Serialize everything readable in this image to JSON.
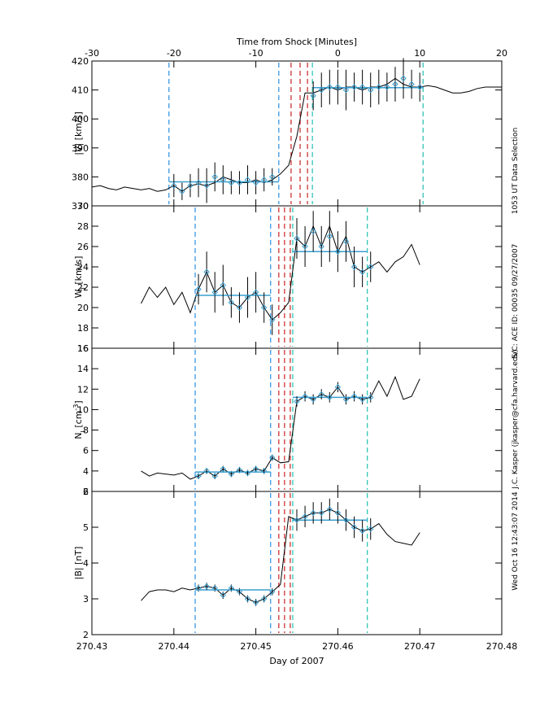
{
  "shared_x": {
    "label": "Day of 2007",
    "xlim": [
      270.43,
      270.48
    ],
    "xticks": [
      270.43,
      270.44,
      270.45,
      270.46,
      270.47,
      270.48
    ]
  },
  "top_axis": {
    "label": "Time from Shock [Minutes]",
    "xlim": [
      -30,
      20
    ],
    "xticks": [
      -30,
      -20,
      -10,
      0,
      10,
      20
    ]
  },
  "side_text": [
    "1053 UT Data Selection",
    "S/C: ACE ID: 00035 09/27/2007",
    "J.C. Kasper (jkasper@cfa.harvard.edu)",
    "Wed Oct 16 12:43:07 2014"
  ],
  "chart_data": [
    {
      "type": "line",
      "ylabel": [
        {
          "text": "|V| [km/s]"
        }
      ],
      "ylim": [
        370,
        420
      ],
      "yticks": [
        370,
        380,
        390,
        400,
        410,
        420
      ],
      "color": "#000000",
      "x": [
        270.43,
        270.431,
        270.432,
        270.433,
        270.434,
        270.435,
        270.436,
        270.437,
        270.438,
        270.439,
        270.44,
        270.441,
        270.442,
        270.443,
        270.444,
        270.445,
        270.446,
        270.447,
        270.448,
        270.449,
        270.45,
        270.451,
        270.452,
        270.453,
        270.454,
        270.455,
        270.456,
        270.457,
        270.458,
        270.459,
        270.46,
        270.461,
        270.462,
        270.463,
        270.464,
        270.465,
        270.466,
        270.467,
        270.468,
        270.469,
        270.47,
        270.471,
        270.472,
        270.473,
        270.474,
        270.475,
        270.476,
        270.477,
        270.478,
        270.479,
        270.48
      ],
      "values": [
        376.5,
        377,
        376,
        375.5,
        376.5,
        376,
        375.5,
        376,
        375,
        375.5,
        377,
        375,
        377,
        377.5,
        377,
        378,
        380,
        379,
        378,
        378,
        379,
        378,
        379,
        381,
        384,
        394,
        409,
        409,
        410,
        411,
        410,
        411,
        411,
        410,
        411,
        411,
        412,
        414,
        412,
        411,
        411,
        411.5,
        411,
        410,
        409,
        409,
        409.5,
        410.5,
        411,
        411,
        411
      ],
      "avg_color": "#3a9fd0",
      "avg_x": [
        270.44,
        270.441,
        270.442,
        270.443,
        270.444,
        270.445,
        270.446,
        270.447,
        270.448,
        270.449,
        270.45,
        270.451,
        270.452,
        270.457,
        270.458,
        270.459,
        270.46,
        270.461,
        270.462,
        270.463,
        270.464,
        270.465,
        270.466,
        270.467,
        270.468,
        270.469,
        270.47
      ],
      "avg_values": [
        377,
        375,
        377,
        378,
        377,
        380,
        379,
        378,
        378,
        379,
        378,
        379,
        380,
        408,
        410,
        411,
        411,
        410,
        411,
        411,
        410,
        411,
        411,
        412,
        414,
        412,
        411
      ],
      "avg_errors": [
        4,
        3,
        4,
        5,
        6,
        5,
        5,
        4,
        4,
        5,
        4,
        4,
        3,
        5,
        6,
        6,
        6,
        7,
        5,
        6,
        6,
        6,
        5,
        6,
        7,
        5,
        5
      ],
      "mean_lines": [
        {
          "x": [
            270.4394,
            270.4528
          ],
          "value": 378.3
        },
        {
          "x": [
            270.4569,
            270.4704
          ],
          "value": 410.8
        }
      ],
      "vlines": [
        {
          "x": 270.4394,
          "color": "#2a8fe0"
        },
        {
          "x": 270.4528,
          "color": "#2a8fe0"
        },
        {
          "x": 270.4543,
          "color": "#c82020"
        },
        {
          "x": 270.4554,
          "color": "#c82020"
        },
        {
          "x": 270.4563,
          "color": "#c82020"
        },
        {
          "x": 270.4569,
          "color": "#20c0b0"
        },
        {
          "x": 270.4704,
          "color": "#20c0b0"
        }
      ]
    },
    {
      "type": "line",
      "ylabel": [
        {
          "text": "W"
        },
        {
          "text": "I",
          "shift": "sub"
        },
        {
          "text": " [km/s]"
        }
      ],
      "ylim": [
        16,
        30
      ],
      "yticks": [
        16,
        18,
        20,
        22,
        24,
        26,
        28,
        30
      ],
      "color": "#000000",
      "x": [
        270.436,
        270.437,
        270.438,
        270.439,
        270.44,
        270.441,
        270.442,
        270.443,
        270.444,
        270.445,
        270.446,
        270.447,
        270.448,
        270.449,
        270.45,
        270.451,
        270.452,
        270.453,
        270.454,
        270.455,
        270.456,
        270.457,
        270.458,
        270.459,
        270.46,
        270.461,
        270.462,
        270.463,
        270.464,
        270.465,
        270.466,
        270.467,
        270.468,
        270.469,
        270.47
      ],
      "values": [
        20.4,
        22,
        21,
        22,
        20.3,
        21.5,
        19.5,
        21.8,
        23.5,
        21.5,
        22.2,
        20.5,
        20,
        21,
        21.5,
        20,
        18.8,
        19.5,
        20.5,
        26.8,
        26,
        28,
        26,
        28,
        25.5,
        27,
        24,
        23.5,
        24,
        24.5,
        23.5,
        24.5,
        25,
        26.2,
        24.2
      ],
      "avg_color": "#3a9fd0",
      "avg_x": [
        270.443,
        270.444,
        270.445,
        270.446,
        270.447,
        270.448,
        270.449,
        270.45,
        270.451,
        270.452,
        270.455,
        270.456,
        270.457,
        270.458,
        270.459,
        270.46,
        270.461,
        270.462,
        270.463,
        270.464
      ],
      "avg_values": [
        21.8,
        23.5,
        21.5,
        22.2,
        20.5,
        20,
        21,
        21.5,
        20,
        18.8,
        26.8,
        26,
        27.5,
        26,
        27,
        25.5,
        26.5,
        24,
        23.5,
        24
      ],
      "avg_errors": [
        1.5,
        2,
        2,
        2,
        1.5,
        1.5,
        2,
        2,
        1.5,
        1.5,
        2,
        2,
        2,
        2,
        2.5,
        2,
        2,
        2,
        1.5,
        1.5
      ],
      "mean_lines": [
        {
          "x": [
            270.4426,
            270.4518
          ],
          "value": 21.2
        },
        {
          "x": [
            270.4545,
            270.4636
          ],
          "value": 25.5
        }
      ],
      "vlines": [
        {
          "x": 270.4426,
          "color": "#2a8fe0"
        },
        {
          "x": 270.4518,
          "color": "#2a8fe0"
        },
        {
          "x": 270.4528,
          "color": "#c82020"
        },
        {
          "x": 270.4535,
          "color": "#c82020"
        },
        {
          "x": 270.4542,
          "color": "#c82020"
        },
        {
          "x": 270.4545,
          "color": "#20c0b0"
        },
        {
          "x": 270.4636,
          "color": "#20c0b0"
        }
      ]
    },
    {
      "type": "line",
      "ylabel": [
        {
          "text": "N"
        },
        {
          "text": "I",
          "shift": "sub"
        },
        {
          "text": " [cm"
        },
        {
          "text": "-3",
          "shift": "super"
        },
        {
          "text": "]"
        }
      ],
      "ylim": [
        2,
        16
      ],
      "yticks": [
        2,
        4,
        6,
        8,
        10,
        12,
        14,
        16
      ],
      "color": "#000000",
      "x": [
        270.436,
        270.437,
        270.438,
        270.439,
        270.44,
        270.441,
        270.442,
        270.443,
        270.444,
        270.445,
        270.446,
        270.447,
        270.448,
        270.449,
        270.45,
        270.451,
        270.452,
        270.453,
        270.454,
        270.455,
        270.456,
        270.457,
        270.458,
        270.459,
        270.46,
        270.461,
        270.462,
        270.463,
        270.464,
        270.465,
        270.466,
        270.467,
        270.468,
        270.469,
        270.47
      ],
      "values": [
        4.0,
        3.5,
        3.8,
        3.7,
        3.6,
        3.8,
        3.2,
        3.5,
        4.0,
        3.5,
        4.2,
        3.7,
        4.1,
        3.8,
        4.2,
        4.0,
        5.3,
        4.8,
        4.9,
        10.8,
        11.3,
        11.0,
        11.5,
        11.2,
        12.2,
        11.0,
        11.3,
        11.0,
        11.2,
        12.8,
        11.3,
        13.2,
        11.0,
        11.3,
        13.0
      ],
      "avg_color": "#3a9fd0",
      "avg_x": [
        270.443,
        270.444,
        270.445,
        270.446,
        270.447,
        270.448,
        270.449,
        270.45,
        270.451,
        270.452,
        270.455,
        270.456,
        270.457,
        270.458,
        270.459,
        270.46,
        270.461,
        270.462,
        270.463,
        270.464
      ],
      "avg_values": [
        3.5,
        4.0,
        3.5,
        4.2,
        3.7,
        4.1,
        3.8,
        4.2,
        4.0,
        5.3,
        10.8,
        11.3,
        11.0,
        11.5,
        11.2,
        12.2,
        11.0,
        11.3,
        11.0,
        11.2
      ],
      "avg_errors": [
        0.3,
        0.3,
        0.3,
        0.3,
        0.3,
        0.3,
        0.3,
        0.3,
        0.3,
        0.3,
        0.5,
        0.5,
        0.5,
        0.5,
        0.5,
        0.5,
        0.5,
        0.5,
        0.5,
        0.5
      ],
      "mean_lines": [
        {
          "x": [
            270.4426,
            270.4518
          ],
          "value": 3.9
        },
        {
          "x": [
            270.4545,
            270.4636
          ],
          "value": 11.2
        }
      ],
      "vlines": [
        {
          "x": 270.4426,
          "color": "#2a8fe0"
        },
        {
          "x": 270.4518,
          "color": "#2a8fe0"
        },
        {
          "x": 270.4528,
          "color": "#c82020"
        },
        {
          "x": 270.4535,
          "color": "#c82020"
        },
        {
          "x": 270.4542,
          "color": "#c82020"
        },
        {
          "x": 270.4545,
          "color": "#20c0b0"
        },
        {
          "x": 270.4636,
          "color": "#20c0b0"
        }
      ]
    },
    {
      "type": "line",
      "ylabel": [
        {
          "text": "|B| [nT]"
        }
      ],
      "ylim": [
        2,
        6
      ],
      "yticks": [
        2,
        3,
        4,
        5,
        6
      ],
      "color": "#000000",
      "x": [
        270.436,
        270.437,
        270.438,
        270.439,
        270.44,
        270.441,
        270.442,
        270.443,
        270.444,
        270.445,
        270.446,
        270.447,
        270.448,
        270.449,
        270.45,
        270.451,
        270.452,
        270.453,
        270.454,
        270.455,
        270.456,
        270.457,
        270.458,
        270.459,
        270.46,
        270.461,
        270.462,
        270.463,
        270.464,
        270.465,
        270.466,
        270.467,
        270.468,
        270.469,
        270.47
      ],
      "values": [
        2.95,
        3.2,
        3.25,
        3.25,
        3.2,
        3.3,
        3.25,
        3.3,
        3.35,
        3.3,
        3.1,
        3.3,
        3.2,
        3.0,
        2.9,
        3.0,
        3.2,
        3.4,
        5.3,
        5.2,
        5.3,
        5.4,
        5.4,
        5.5,
        5.4,
        5.2,
        5.0,
        4.9,
        4.95,
        5.1,
        4.8,
        4.6,
        4.55,
        4.5,
        4.85
      ],
      "avg_color": "#3a9fd0",
      "avg_x": [
        270.443,
        270.444,
        270.445,
        270.446,
        270.447,
        270.448,
        270.449,
        270.45,
        270.451,
        270.452,
        270.455,
        270.456,
        270.457,
        270.458,
        270.459,
        270.46,
        270.461,
        270.462,
        270.463,
        270.464
      ],
      "avg_values": [
        3.3,
        3.35,
        3.3,
        3.1,
        3.3,
        3.2,
        3.0,
        2.9,
        3.0,
        3.2,
        5.2,
        5.3,
        5.4,
        5.4,
        5.5,
        5.4,
        5.2,
        5.0,
        4.9,
        4.95
      ],
      "avg_errors": [
        0.1,
        0.1,
        0.1,
        0.1,
        0.1,
        0.1,
        0.1,
        0.1,
        0.1,
        0.1,
        0.3,
        0.3,
        0.3,
        0.3,
        0.3,
        0.3,
        0.3,
        0.3,
        0.3,
        0.3
      ],
      "mean_lines": [
        {
          "x": [
            270.4426,
            270.4518
          ],
          "value": 3.25
        },
        {
          "x": [
            270.4545,
            270.4636
          ],
          "value": 5.2
        }
      ],
      "vlines": [
        {
          "x": 270.4426,
          "color": "#2a8fe0"
        },
        {
          "x": 270.4518,
          "color": "#2a8fe0"
        },
        {
          "x": 270.4528,
          "color": "#c82020"
        },
        {
          "x": 270.4535,
          "color": "#c82020"
        },
        {
          "x": 270.4542,
          "color": "#c82020"
        },
        {
          "x": 270.4545,
          "color": "#20c0b0"
        },
        {
          "x": 270.4636,
          "color": "#20c0b0"
        }
      ]
    }
  ]
}
